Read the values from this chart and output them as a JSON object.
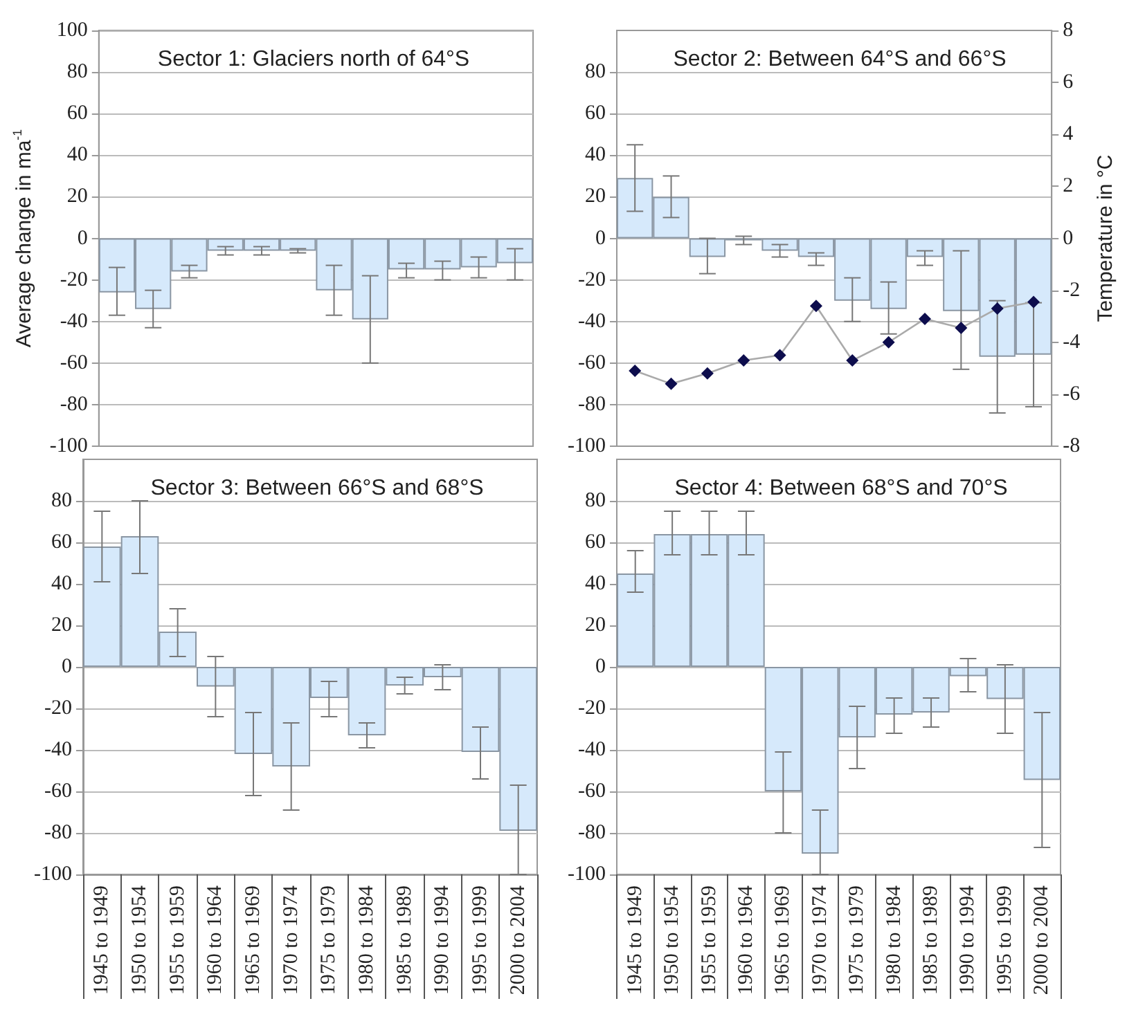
{
  "chart_data": [
    {
      "type": "bar",
      "title": "Sector 1: Glaciers north of 64°S",
      "ylabel": "Average change in ma$^{-1}$",
      "categories": [
        null,
        null,
        null,
        null,
        null,
        null,
        null,
        null,
        null,
        null,
        null,
        null
      ],
      "series": [
        {
          "color": "#d6e9fb",
          "values": [
            -26,
            -34,
            -16,
            -6,
            -6,
            -6,
            -25,
            -39,
            -15,
            -15,
            -14,
            -12
          ],
          "errors": [
            [
              -37,
              -14
            ],
            [
              -43,
              -25
            ],
            [
              -19,
              -13
            ],
            [
              -8,
              -4
            ],
            [
              -8,
              -4
            ],
            [
              -7,
              -5
            ],
            [
              -37,
              -13
            ],
            [
              -60,
              -18
            ],
            [
              -19,
              -12
            ],
            [
              -20,
              -11
            ],
            [
              -19,
              -9
            ],
            [
              -20,
              -5
            ]
          ]
        }
      ],
      "ylim": [
        -100,
        100
      ],
      "yticks": [
        -100,
        -80,
        -60,
        -40,
        -20,
        0,
        20,
        40,
        60,
        80,
        100
      ],
      "grid": "y",
      "tick_labels": "y"
    },
    {
      "type": "bar",
      "title": "Sector 2: Between 64°S and 66°S",
      "y2label": "Temperature in °C",
      "categories": [
        null,
        null,
        null,
        null,
        null,
        null,
        null,
        null,
        null,
        null,
        null,
        null
      ],
      "series": [
        {
          "color": "#d6e9fb",
          "values": [
            29,
            20,
            -9,
            -1,
            -6,
            -9,
            -30,
            -34,
            -9,
            -35,
            -57,
            -56
          ],
          "errors": [
            [
              13,
              45
            ],
            [
              10,
              30
            ],
            [
              -17,
              0
            ],
            [
              -3,
              1
            ],
            [
              -9,
              -3
            ],
            [
              -13,
              -7
            ],
            [
              -40,
              -19
            ],
            [
              -46,
              -21
            ],
            [
              -13,
              -6
            ],
            [
              -63,
              -6
            ],
            [
              -84,
              -30
            ],
            [
              -81,
              -31
            ]
          ]
        },
        {
          "type": "line",
          "axis": "y2",
          "color": "#0d0d4d",
          "marker": "diamond",
          "values": [
            -5.1,
            -5.6,
            -5.2,
            -4.7,
            -4.5,
            -2.6,
            -4.7,
            -4.0,
            -3.1,
            -3.45,
            -2.7,
            -2.45
          ]
        }
      ],
      "ylim": [
        -100,
        100
      ],
      "yticks": [
        -100,
        -80,
        -60,
        -40,
        -20,
        0,
        20,
        40,
        60,
        80
      ],
      "y2lim": [
        -8,
        8
      ],
      "y2ticks": [
        -8,
        -6,
        -4,
        -2,
        0,
        2,
        4,
        6,
        8
      ],
      "grid": "y",
      "tick_labels": "y"
    },
    {
      "type": "bar",
      "title": "Sector 3: Between 66°S and 68°S",
      "categories": [
        "1945 to 1949",
        "1950 to 1954",
        "1955 to 1959",
        "1960 to 1964",
        "1965 to 1969",
        "1970 to 1974",
        "1975 to 1979",
        "1980 to 1984",
        "1985 to 1989",
        "1990 to 1994",
        "1995 to 1999",
        "2000 to 2004"
      ],
      "series": [
        {
          "color": "#d6e9fb",
          "values": [
            58,
            63,
            17,
            -9.5,
            -42,
            -48,
            -15,
            -33,
            -9,
            -5,
            -41,
            -79
          ],
          "errors": [
            [
              41,
              75
            ],
            [
              45,
              80
            ],
            [
              5,
              28
            ],
            [
              -24,
              5
            ],
            [
              -62,
              -22
            ],
            [
              -69,
              -27
            ],
            [
              -24,
              -7
            ],
            [
              -39,
              -27
            ],
            [
              -13,
              -5
            ],
            [
              -11,
              1
            ],
            [
              -54,
              -29
            ],
            [
              -100,
              -57
            ]
          ]
        }
      ],
      "ylim": [
        -100,
        100
      ],
      "yticks": [
        -100,
        -80,
        -60,
        -40,
        -20,
        0,
        20,
        40,
        60,
        80
      ],
      "grid": "y"
    },
    {
      "type": "bar",
      "title": "Sector 4: Between 68°S and 70°S",
      "categories": [
        "1945 to 1949",
        "1950 to 1954",
        "1955 to 1959",
        "1960 to 1964",
        "1965 to 1969",
        "1970 to 1974",
        "1975 to 1979",
        "1980 to 1984",
        "1985 to 1989",
        "1990 to 1994",
        "1995 to 1999",
        "2000 to 2004"
      ],
      "series": [
        {
          "color": "#d6e9fb",
          "values": [
            45,
            64,
            64,
            64,
            -60,
            -90,
            -34,
            -23,
            -22,
            -4.5,
            -15.5,
            -54.5
          ],
          "errors": [
            [
              36,
              56
            ],
            [
              54,
              75
            ],
            [
              54,
              75
            ],
            [
              54,
              75
            ],
            [
              -80,
              -41
            ],
            [
              -100,
              -69
            ],
            [
              -49,
              -19
            ],
            [
              -32,
              -15
            ],
            [
              -29,
              -15
            ],
            [
              -12,
              4
            ],
            [
              -32,
              1
            ],
            [
              -87,
              -22
            ]
          ]
        }
      ],
      "ylim": [
        -100,
        100
      ],
      "yticks": [
        -100,
        -80,
        -60,
        -40,
        -20,
        0,
        20,
        40,
        60,
        80
      ],
      "grid": "y"
    }
  ]
}
